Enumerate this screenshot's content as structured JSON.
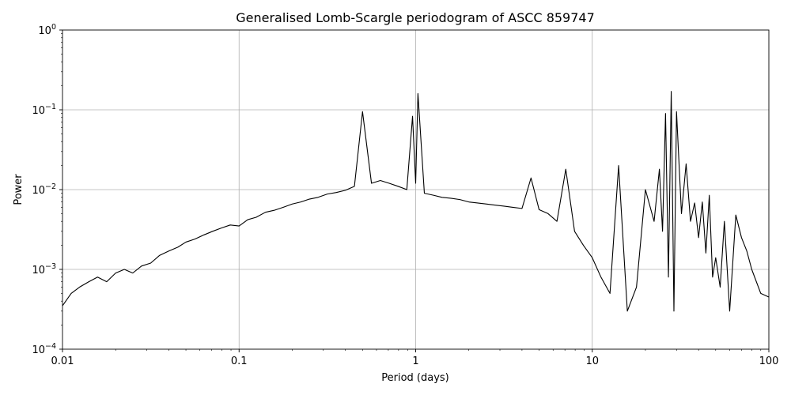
{
  "chart_data": {
    "type": "line",
    "title": "Generalised Lomb-Scargle periodogram of ASCC 859747",
    "xlabel": "Period (days)",
    "ylabel": "Power",
    "xscale": "log",
    "yscale": "log",
    "xlim": [
      0.01,
      100
    ],
    "ylim": [
      0.0001,
      1
    ],
    "grid": true,
    "line_color": "#000000",
    "x_ticks": [
      {
        "value": 0.01,
        "label": "0.01"
      },
      {
        "value": 0.1,
        "label": "0.1"
      },
      {
        "value": 1,
        "label": "1"
      },
      {
        "value": 10,
        "label": "10"
      },
      {
        "value": 100,
        "label": "100"
      }
    ],
    "y_ticks": [
      {
        "value": 0.0001,
        "base": "10",
        "exp": "−4"
      },
      {
        "value": 0.001,
        "base": "10",
        "exp": "−3"
      },
      {
        "value": 0.01,
        "base": "10",
        "exp": "−2"
      },
      {
        "value": 0.1,
        "base": "10",
        "exp": "−1"
      },
      {
        "value": 1,
        "base": "10",
        "exp": "0"
      }
    ],
    "series": [
      {
        "x": [
          0.01,
          0.0112,
          0.0125,
          0.0141,
          0.0158,
          0.0178,
          0.02,
          0.0224,
          0.025,
          0.028,
          0.0316,
          0.0355,
          0.04,
          0.045,
          0.05,
          0.0562,
          0.0631,
          0.0708,
          0.0794,
          0.0891,
          0.1,
          0.112,
          0.125,
          0.141,
          0.158,
          0.178,
          0.2,
          0.224,
          0.25,
          0.28,
          0.316,
          0.355,
          0.4,
          0.45,
          0.5,
          0.562,
          0.631,
          0.708,
          0.794,
          0.891,
          0.96,
          1.0,
          1.03,
          1.12,
          1.26,
          1.41,
          1.58,
          1.78,
          2.0,
          2.24,
          2.5,
          2.8,
          3.16,
          3.55,
          4.0,
          4.5,
          5.0,
          5.62,
          6.31,
          7.08,
          7.94,
          8.91,
          10.0,
          11.2,
          12.6,
          14.1,
          15.8,
          17.8,
          20.0,
          22.4,
          24.0,
          25.0,
          26.0,
          27.0,
          28.0,
          29.0,
          30.0,
          32.0,
          34.0,
          36.0,
          38.0,
          40.0,
          42.0,
          44.0,
          46.0,
          48.0,
          50.0,
          53.0,
          56.0,
          60.0,
          65.0,
          70.0,
          75.0,
          80.0,
          90.0,
          100.0
        ],
        "y": [
          0.00035,
          0.0005,
          0.0006,
          0.0007,
          0.0008,
          0.0007,
          0.0009,
          0.001,
          0.0009,
          0.0011,
          0.0012,
          0.0015,
          0.0017,
          0.0019,
          0.0022,
          0.0024,
          0.0027,
          0.003,
          0.0033,
          0.0036,
          0.0035,
          0.0042,
          0.0045,
          0.0052,
          0.0055,
          0.006,
          0.0066,
          0.007,
          0.0076,
          0.008,
          0.0088,
          0.0092,
          0.0098,
          0.011,
          0.095,
          0.012,
          0.013,
          0.012,
          0.011,
          0.01,
          0.083,
          0.012,
          0.16,
          0.009,
          0.0085,
          0.008,
          0.0078,
          0.0075,
          0.007,
          0.0068,
          0.0066,
          0.0064,
          0.0062,
          0.006,
          0.0058,
          0.014,
          0.0056,
          0.005,
          0.004,
          0.018,
          0.003,
          0.002,
          0.0014,
          0.0008,
          0.0005,
          0.02,
          0.0003,
          0.0006,
          0.01,
          0.004,
          0.018,
          0.003,
          0.09,
          0.0008,
          0.17,
          0.0003,
          0.095,
          0.005,
          0.021,
          0.004,
          0.0068,
          0.0025,
          0.007,
          0.0016,
          0.0085,
          0.0008,
          0.0014,
          0.0006,
          0.004,
          0.0003,
          0.0048,
          0.0025,
          0.0017,
          0.001,
          0.0005,
          0.00045
        ],
        "style": "solid"
      }
    ]
  }
}
